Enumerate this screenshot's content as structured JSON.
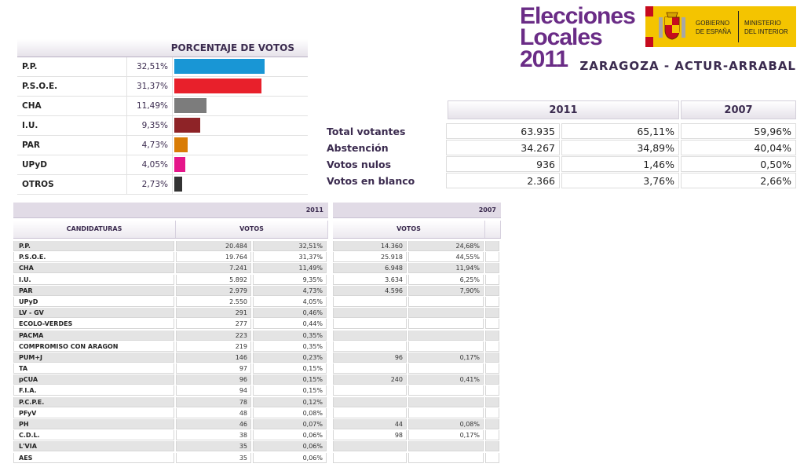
{
  "header": {
    "logo_line1": "Elecciones",
    "logo_line2a": "Locales ",
    "logo_line2b": "2011",
    "gob_text1": "GOBIERNO",
    "gob_text2": "DE ESPAÑA",
    "min_text1": "MINISTERIO",
    "min_text2": "DEL INTERIOR",
    "place": "ZARAGOZA - ACTUR-ARRABAL"
  },
  "pct_chart": {
    "title": "PORCENTAJE DE VOTOS",
    "rows": [
      {
        "party": "P.P.",
        "label": "32,51%",
        "value": 32.51,
        "color": "#1996d5"
      },
      {
        "party": "P.S.O.E.",
        "label": "31,37%",
        "value": 31.37,
        "color": "#e8202b"
      },
      {
        "party": "CHA",
        "label": "11,49%",
        "value": 11.49,
        "color": "#7c7c7c"
      },
      {
        "party": "I.U.",
        "label": "9,35%",
        "value": 9.35,
        "color": "#8e2327"
      },
      {
        "party": "PAR",
        "label": "4,73%",
        "value": 4.73,
        "color": "#d97c06"
      },
      {
        "party": "UPyD",
        "label": "4,05%",
        "value": 4.05,
        "color": "#e5168a"
      },
      {
        "party": "OTROS",
        "label": "2,73%",
        "value": 2.73,
        "color": "#333333"
      }
    ]
  },
  "summary": {
    "year_2011": "2011",
    "year_2007": "2007",
    "rows": [
      {
        "label": "Total votantes",
        "v2011": "63.935",
        "p2011": "65,11%",
        "p2007": "59,96%"
      },
      {
        "label": "Abstención",
        "v2011": "34.267",
        "p2011": "34,89%",
        "p2007": "40,04%"
      },
      {
        "label": "Votos nulos",
        "v2011": "936",
        "p2011": "1,46%",
        "p2007": "0,50%"
      },
      {
        "label": "Votos en blanco",
        "v2011": "2.366",
        "p2011": "3,76%",
        "p2007": "2,66%"
      }
    ]
  },
  "detail": {
    "year_2011": "2011",
    "year_2007": "2007",
    "col_candidaturas": "CANDIDATURAS",
    "col_votos": "VOTOS",
    "col_votos_2007": "VOTOS",
    "rows": [
      {
        "name": "P.P.",
        "v11": "20.484",
        "p11": "32,51%",
        "v07": "14.360",
        "p07": "24,68%"
      },
      {
        "name": "P.S.O.E.",
        "v11": "19.764",
        "p11": "31,37%",
        "v07": "25.918",
        "p07": "44,55%"
      },
      {
        "name": "CHA",
        "v11": "7.241",
        "p11": "11,49%",
        "v07": "6.948",
        "p07": "11,94%"
      },
      {
        "name": "I.U.",
        "v11": "5.892",
        "p11": "9,35%",
        "v07": "3.634",
        "p07": "6,25%"
      },
      {
        "name": "PAR",
        "v11": "2.979",
        "p11": "4,73%",
        "v07": "4.596",
        "p07": "7,90%"
      },
      {
        "name": "UPyD",
        "v11": "2.550",
        "p11": "4,05%",
        "v07": "",
        "p07": ""
      },
      {
        "name": "LV - GV",
        "v11": "291",
        "p11": "0,46%",
        "v07": "",
        "p07": ""
      },
      {
        "name": "ECOLO-VERDES",
        "v11": "277",
        "p11": "0,44%",
        "v07": "",
        "p07": ""
      },
      {
        "name": "PACMA",
        "v11": "223",
        "p11": "0,35%",
        "v07": "",
        "p07": ""
      },
      {
        "name": "COMPROMISO CON ARAGON",
        "v11": "219",
        "p11": "0,35%",
        "v07": "",
        "p07": ""
      },
      {
        "name": "PUM+J",
        "v11": "146",
        "p11": "0,23%",
        "v07": "96",
        "p07": "0,17%"
      },
      {
        "name": "TA",
        "v11": "97",
        "p11": "0,15%",
        "v07": "",
        "p07": ""
      },
      {
        "name": "pCUA",
        "v11": "96",
        "p11": "0,15%",
        "v07": "240",
        "p07": "0,41%"
      },
      {
        "name": "F.I.A.",
        "v11": "94",
        "p11": "0,15%",
        "v07": "",
        "p07": ""
      },
      {
        "name": "P.C.P.E.",
        "v11": "78",
        "p11": "0,12%",
        "v07": "",
        "p07": ""
      },
      {
        "name": "PFyV",
        "v11": "48",
        "p11": "0,08%",
        "v07": "",
        "p07": ""
      },
      {
        "name": "PH",
        "v11": "46",
        "p11": "0,07%",
        "v07": "44",
        "p07": "0,08%"
      },
      {
        "name": "C.D.L.",
        "v11": "38",
        "p11": "0,06%",
        "v07": "98",
        "p07": "0,17%"
      },
      {
        "name": "L'VIA",
        "v11": "35",
        "p11": "0,06%",
        "v07": "",
        "p07": ""
      },
      {
        "name": "AES",
        "v11": "35",
        "p11": "0,06%",
        "v07": "",
        "p07": ""
      }
    ]
  }
}
